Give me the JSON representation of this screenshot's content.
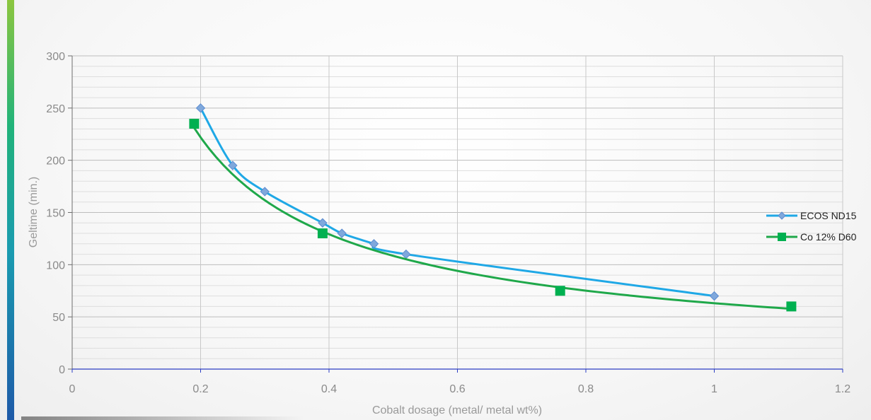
{
  "chart_data": {
    "type": "line",
    "xlabel": "Cobalt dosage (metal/ metal wt%)",
    "ylabel": "Geltime (min.)",
    "xlim": [
      0,
      1.2
    ],
    "ylim": [
      0,
      300
    ],
    "x_ticks": [
      "0",
      "0.2",
      "0.4",
      "0.6",
      "0.8",
      "1",
      "1.2"
    ],
    "y_ticks": [
      "0",
      "50",
      "100",
      "150",
      "200",
      "250",
      "300"
    ],
    "x_tick_values": [
      0,
      0.2,
      0.4,
      0.6,
      0.8,
      1.0,
      1.2
    ],
    "y_tick_values": [
      0,
      50,
      100,
      150,
      200,
      250,
      300
    ],
    "grid": true,
    "legend_position": "right",
    "series": [
      {
        "name": "ECOS ND15",
        "color": "#1fa8e6",
        "marker_color": "#7fa8dc",
        "marker": "diamond",
        "x": [
          0.2,
          0.25,
          0.3,
          0.39,
          0.42,
          0.47,
          0.52,
          1.0
        ],
        "y": [
          250,
          195,
          170,
          140,
          130,
          120,
          110,
          70
        ]
      },
      {
        "name": "Co 12% D60",
        "color": "#1fa84a",
        "marker_color": "#00b050",
        "marker": "square",
        "x": [
          0.19,
          0.39,
          0.76,
          1.12
        ],
        "y": [
          235,
          130,
          75,
          60
        ],
        "trendline": true
      }
    ]
  }
}
